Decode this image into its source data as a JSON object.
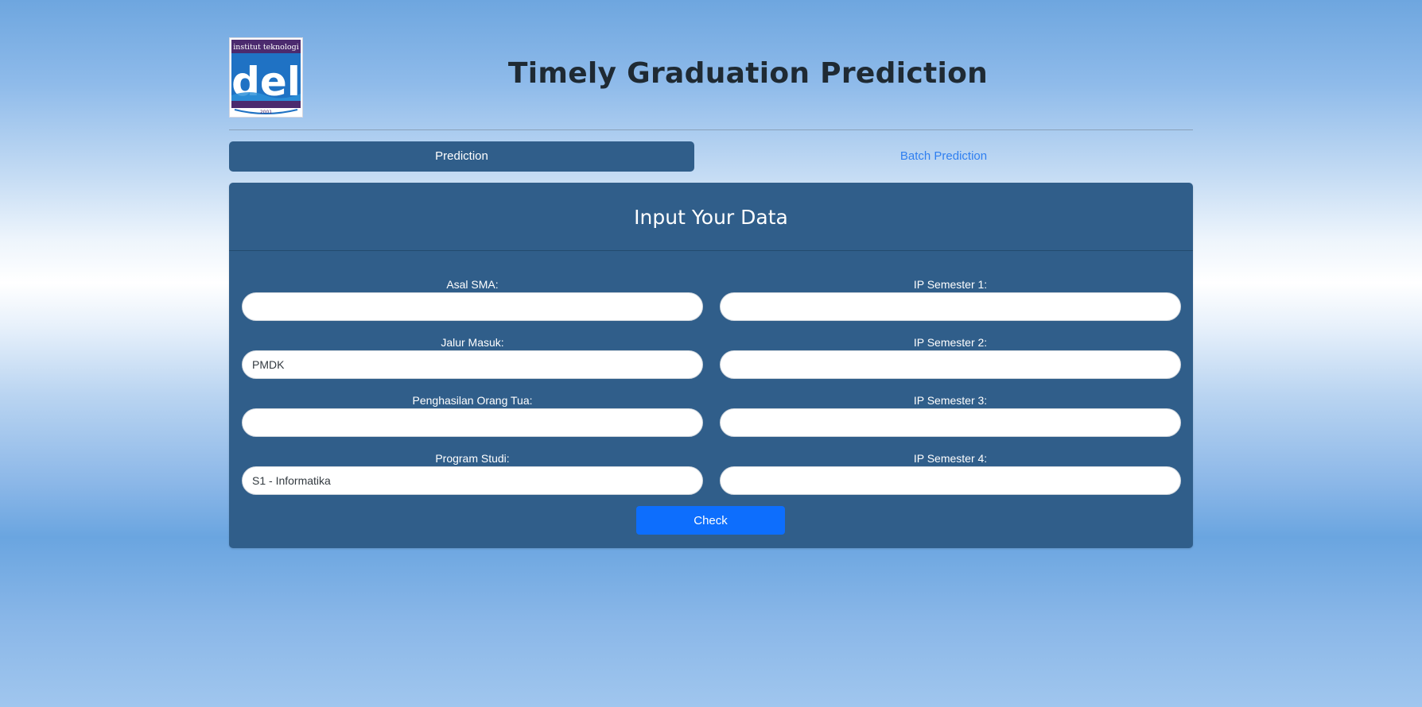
{
  "header": {
    "logo_alt": "institut teknologi del",
    "logo_top_text": "institut teknologi",
    "logo_main_text": "del",
    "logo_year": "2001",
    "title": "Timely Graduation Prediction"
  },
  "tabs": [
    {
      "label": "Prediction",
      "active": true
    },
    {
      "label": "Batch Prediction",
      "active": false
    }
  ],
  "form": {
    "heading": "Input Your Data",
    "left_fields": [
      {
        "label": "Asal SMA:",
        "value": "",
        "placeholder": ""
      },
      {
        "label": "Jalur Masuk:",
        "value": "PMDK",
        "placeholder": ""
      },
      {
        "label": "Penghasilan Orang Tua:",
        "value": "",
        "placeholder": ""
      },
      {
        "label": "Program Studi:",
        "value": "S1 - Informatika",
        "placeholder": ""
      }
    ],
    "right_fields": [
      {
        "label": "IP Semester 1:",
        "value": "",
        "placeholder": ""
      },
      {
        "label": "IP Semester 2:",
        "value": "",
        "placeholder": ""
      },
      {
        "label": "IP Semester 3:",
        "value": "",
        "placeholder": ""
      },
      {
        "label": "IP Semester 4:",
        "value": "",
        "placeholder": ""
      }
    ],
    "submit_label": "Check"
  },
  "colors": {
    "panel": "#305e8a",
    "accent_button": "#0d6efd",
    "inactive_tab_text": "#2f7ff0",
    "logo_purple": "#4b2a6e",
    "logo_blue": "#1f72c4"
  }
}
